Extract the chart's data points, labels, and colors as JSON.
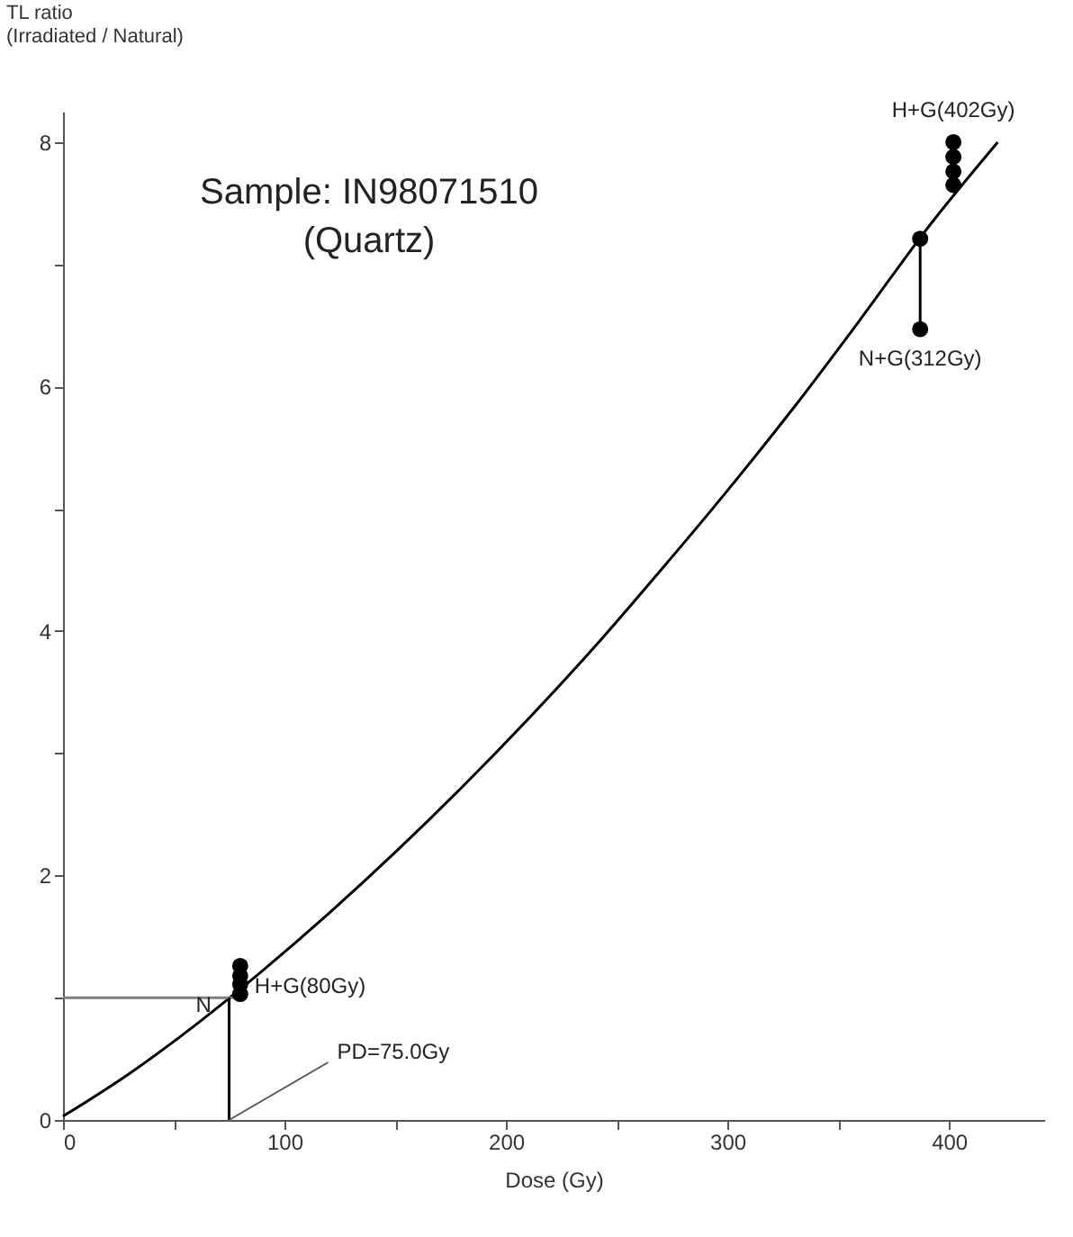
{
  "chart_data": {
    "type": "line",
    "title": "Sample: IN98071510",
    "subtitle": "(Quartz)",
    "xlabel": "Dose (Gy)",
    "ylabel": "TL ratio\n(Irradiated / Natural)",
    "xlim": [
      0,
      443
    ],
    "ylim": [
      0,
      8.25
    ],
    "xticks": [
      0,
      {
        "value": 50,
        "label": null
      },
      100,
      {
        "value": 150,
        "label": null
      },
      200,
      {
        "value": 250,
        "label": null
      },
      300,
      {
        "value": 350,
        "label": null
      },
      400
    ],
    "yticks": [
      0,
      {
        "value": 1,
        "label": null
      },
      2,
      {
        "value": 3,
        "label": null
      },
      4,
      {
        "value": 5,
        "label": null
      },
      6,
      {
        "value": 7,
        "label": null
      },
      8
    ],
    "grid": false,
    "series": [
      {
        "color": "#000000",
        "x": [
          0,
          30,
          60,
          90,
          120,
          150,
          180,
          210,
          240,
          270,
          300,
          330,
          360,
          390,
          422
        ],
        "values": [
          0.03,
          0.38,
          0.78,
          1.22,
          1.69,
          2.19,
          2.72,
          3.28,
          3.87,
          4.5,
          5.15,
          5.83,
          6.55,
          7.29,
          8.0
        ]
      },
      {
        "color": "#808080",
        "x": [
          0,
          80
        ],
        "values": [
          1.0,
          1.0
        ]
      },
      {
        "color": "#000000",
        "x": [
          75,
          75
        ],
        "values": [
          0,
          1.0
        ]
      },
      {
        "color": "#000000",
        "x": [
          387,
          387
        ],
        "values": [
          6.47,
          7.21
        ]
      },
      {
        "type": "scatter",
        "marker": "circle",
        "color": "#000000",
        "x": [
          80,
          80,
          80,
          80,
          387,
          387,
          402,
          402,
          402,
          402
        ],
        "values": [
          1.03,
          1.11,
          1.18,
          1.26,
          7.21,
          6.47,
          8.0,
          7.88,
          7.76,
          7.65
        ]
      }
    ],
    "annotations": [
      {
        "text": "N",
        "x": 80,
        "y": 1.0
      },
      {
        "text": "H+G(80Gy)",
        "x": 80,
        "y": 1.1
      },
      {
        "text": "PD=75.0Gy",
        "x": 75,
        "y": 0
      },
      {
        "text": "N+G(312Gy)",
        "x": 387,
        "y": 6.47
      },
      {
        "text": "H+G(402Gy)",
        "x": 402,
        "y": 8.0
      }
    ]
  }
}
